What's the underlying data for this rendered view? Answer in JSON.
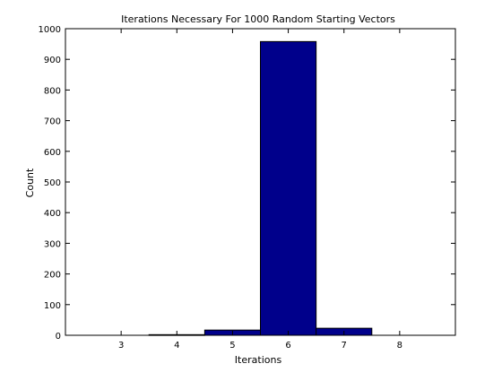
{
  "chart_data": {
    "type": "bar",
    "title": "Iterations Necessary For 1000 Random Starting Vectors",
    "xlabel": "Iterations",
    "ylabel": "Count",
    "x": [
      4,
      5,
      6,
      7
    ],
    "values": [
      2,
      17,
      958,
      23
    ],
    "xlim": [
      2,
      9
    ],
    "ylim": [
      0,
      1000
    ],
    "xticks": [
      3,
      4,
      5,
      6,
      7,
      8
    ],
    "yticks": [
      0,
      100,
      200,
      300,
      400,
      500,
      600,
      700,
      800,
      900,
      1000
    ],
    "bar_color": "#00008b",
    "grid": false,
    "legend": "none"
  }
}
